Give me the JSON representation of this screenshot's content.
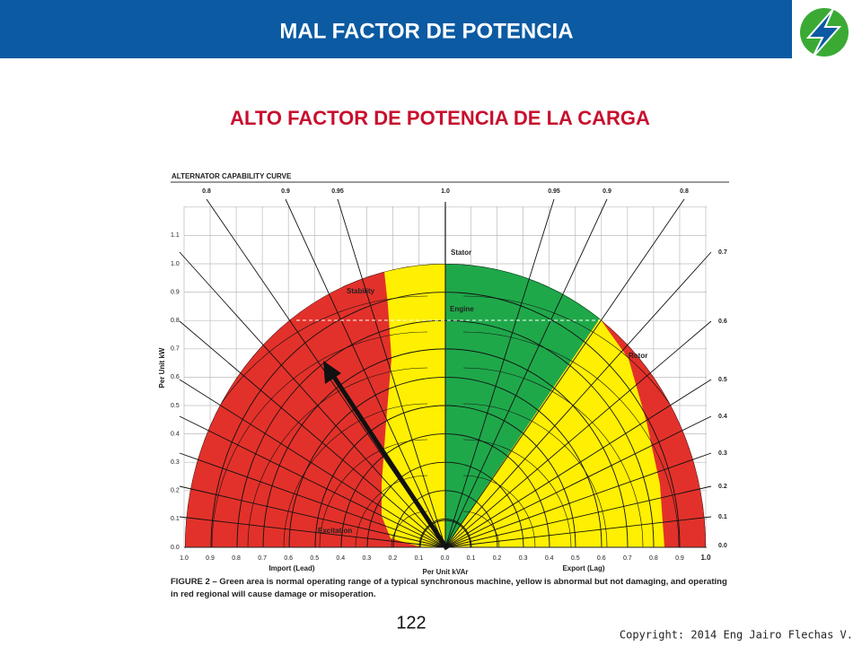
{
  "header": {
    "title": "MAL FACTOR DE POTENCIA"
  },
  "subtitle": "ALTO  FACTOR DE POTENCIA DE LA CARGA",
  "figure": {
    "heading": "ALTERNATOR CAPABILITY CURVE",
    "top_labels": [
      "0.8",
      "0.9",
      "0.95",
      "1.0",
      "0.95",
      "0.9",
      "0.8"
    ],
    "right_labels": [
      "0.7",
      "0.6",
      "0.5",
      "0.4",
      "0.3",
      "0.2",
      "0.1",
      "0.0"
    ],
    "y_labels": [
      "0.0",
      "0.1",
      "0.2",
      "0.3",
      "0.4",
      "0.5",
      "0.6",
      "0.7",
      "0.8",
      "0.9",
      "1.0",
      "1.1"
    ],
    "x_labels": [
      "1.0",
      "0.9",
      "0.8",
      "0.7",
      "0.6",
      "0.5",
      "0.4",
      "0.3",
      "0.2",
      "0.1",
      "0.0",
      "0.1",
      "0.2",
      "0.3",
      "0.4",
      "0.5",
      "0.6",
      "0.7",
      "0.8",
      "0.9",
      "1.0"
    ],
    "y_axis_title": "Per Unit kW",
    "x_axis_title": "Per Unit kVAr",
    "import_label": "Import (Lead)",
    "export_label": "Export (Lag)",
    "regions": {
      "stator": "Stator",
      "engine": "Engine",
      "stability": "Stability",
      "rotor": "Rotor",
      "excitation": "Excitation"
    },
    "caption": "FIGURE 2 – Green area is normal operating range of a typical synchronous machine, yellow is abnormal but not damaging, and operating in red regional will cause damage or misoperation."
  },
  "page_number": "122",
  "copyright": "Copyright: 2014 Eng Jairo Flechas V."
}
